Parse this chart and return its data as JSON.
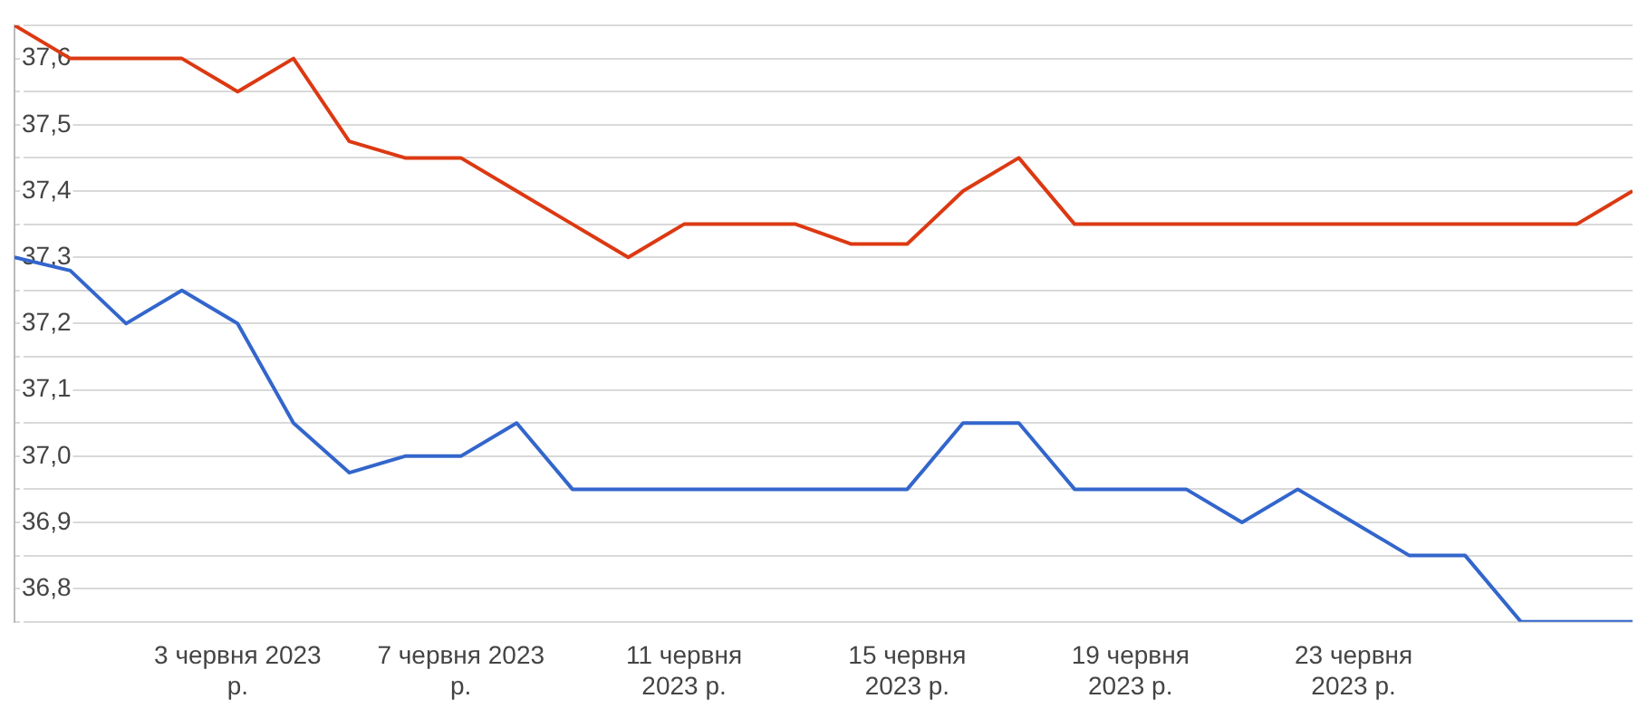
{
  "chart_data": {
    "type": "line",
    "x": [
      "2023-05-30",
      "2023-05-31",
      "2023-06-01",
      "2023-06-02",
      "2023-06-03",
      "2023-06-04",
      "2023-06-05",
      "2023-06-06",
      "2023-06-07",
      "2023-06-08",
      "2023-06-09",
      "2023-06-10",
      "2023-06-11",
      "2023-06-12",
      "2023-06-13",
      "2023-06-14",
      "2023-06-15",
      "2023-06-16",
      "2023-06-17",
      "2023-06-18",
      "2023-06-19",
      "2023-06-20",
      "2023-06-21",
      "2023-06-22",
      "2023-06-23",
      "2023-06-24",
      "2023-06-25",
      "2023-06-26",
      "2023-06-27",
      "2023-06-28"
    ],
    "series": [
      {
        "color": "#dc3912",
        "values": [
          37.65,
          37.6,
          37.6,
          37.6,
          37.55,
          37.6,
          37.475,
          37.45,
          37.45,
          37.4,
          37.35,
          37.3,
          37.35,
          37.35,
          37.35,
          37.32,
          37.32,
          37.4,
          37.45,
          37.35,
          37.35,
          37.35,
          37.35,
          37.35,
          37.35,
          37.35,
          37.35,
          37.35,
          37.35,
          37.4
        ]
      },
      {
        "color": "#3366cc",
        "values": [
          37.3,
          37.28,
          37.2,
          37.25,
          37.2,
          37.05,
          36.975,
          37.0,
          37.0,
          37.05,
          36.95,
          36.95,
          36.95,
          36.95,
          36.95,
          36.95,
          36.95,
          37.05,
          37.05,
          36.95,
          36.95,
          36.95,
          36.9,
          36.95,
          36.9,
          36.85,
          36.85,
          36.75,
          36.75,
          36.75
        ]
      }
    ],
    "xlim": [
      "2023-05-30",
      "2023-06-28"
    ],
    "xticks": [
      {
        "value": "2023-06-03",
        "label": "3 червня 2023 р."
      },
      {
        "value": "2023-06-07",
        "label": "7 червня 2023 р."
      },
      {
        "value": "2023-06-11",
        "label": "11 червня 2023 р."
      },
      {
        "value": "2023-06-15",
        "label": "15 червня 2023 р."
      },
      {
        "value": "2023-06-19",
        "label": "19 червня 2023 р."
      },
      {
        "value": "2023-06-23",
        "label": "23 червня 2023 р."
      }
    ],
    "ylim": [
      36.75,
      37.65
    ],
    "yticks": [
      {
        "value": 36.75,
        "label": null
      },
      {
        "value": 36.8,
        "label": "36,8"
      },
      {
        "value": 36.85,
        "label": null
      },
      {
        "value": 36.9,
        "label": "36,9"
      },
      {
        "value": 36.95,
        "label": null
      },
      {
        "value": 37.0,
        "label": "37,0"
      },
      {
        "value": 37.05,
        "label": null
      },
      {
        "value": 37.1,
        "label": "37,1"
      },
      {
        "value": 37.15,
        "label": null
      },
      {
        "value": 37.2,
        "label": "37,2"
      },
      {
        "value": 37.25,
        "label": null
      },
      {
        "value": 37.3,
        "label": "37,3"
      },
      {
        "value": 37.35,
        "label": null
      },
      {
        "value": 37.4,
        "label": "37,4"
      },
      {
        "value": 37.45,
        "label": null
      },
      {
        "value": 37.5,
        "label": "37,5"
      },
      {
        "value": 37.55,
        "label": null
      },
      {
        "value": 37.6,
        "label": "37,6"
      },
      {
        "value": 37.65,
        "label": null
      }
    ],
    "grid": "y",
    "legend": false,
    "marker": "none",
    "line_style": "solid"
  }
}
